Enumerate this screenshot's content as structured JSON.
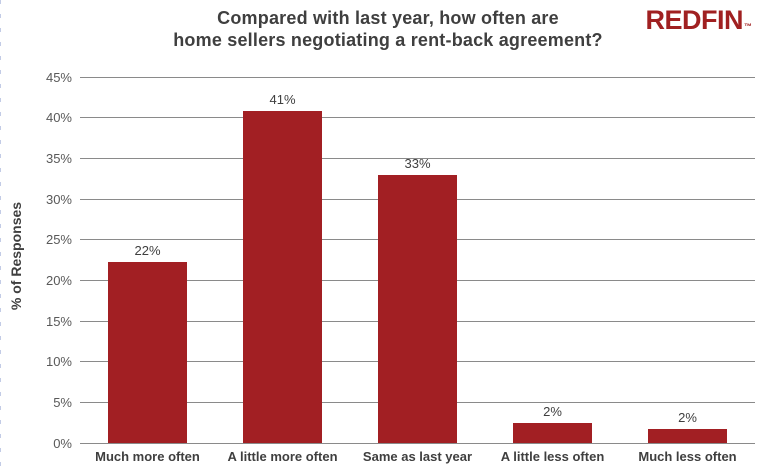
{
  "header": {
    "title_line1": "Compared with last year, how often are",
    "title_line2": "home sellers negotiating a rent-back agreement?",
    "logo_text": "REDFIN",
    "logo_tm": "™",
    "logo_color": "#a02021"
  },
  "chart_data": {
    "type": "bar",
    "title": "Compared with last year, how often are home sellers negotiating a rent-back agreement?",
    "categories": [
      "Much more often",
      "A little more often",
      "Same as last year",
      "A little less often",
      "Much less often"
    ],
    "values": [
      22,
      41,
      33,
      2,
      2
    ],
    "value_labels": [
      "22%",
      "41%",
      "33%",
      "2%",
      "2%"
    ],
    "rendered_heights_pct": [
      22.2,
      40.8,
      33.0,
      2.4,
      1.7
    ],
    "xlabel": "",
    "ylabel": "% of Responses",
    "ylim": [
      0,
      45
    ],
    "ytick_step": 5,
    "ytick_labels": [
      "0%",
      "5%",
      "10%",
      "15%",
      "20%",
      "25%",
      "30%",
      "35%",
      "40%",
      "45%"
    ],
    "grid": true,
    "legend": "none",
    "bar_color": "#a21f23",
    "gridline_color": "#8a8a8a",
    "text_color": "#3f3f3f",
    "tick_text_color": "#595959"
  }
}
